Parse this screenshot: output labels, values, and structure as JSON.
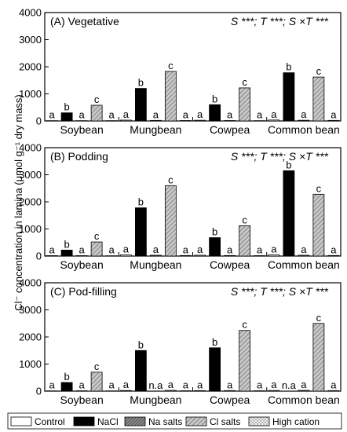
{
  "chart_data": {
    "type": "bar",
    "ylabel": "Cl⁻ concentration in lamina (μmol g⁻¹ dry mass)",
    "categories": [
      "Soybean",
      "Mungbean",
      "Cowpea",
      "Common bean"
    ],
    "legend": {
      "placement": "bottom",
      "entries": [
        "Control",
        "NaCl",
        "Na salts",
        "Cl salts",
        "High cation"
      ]
    },
    "series_styles": [
      {
        "fill": "#ffffff",
        "pattern": "none"
      },
      {
        "fill": "#000000",
        "pattern": "none"
      },
      {
        "fill": "#6e6e6e",
        "pattern": "hatch-dense"
      },
      {
        "fill": "#bdbdbd",
        "pattern": "hatch"
      },
      {
        "fill": "#ffffff",
        "pattern": "crosshatch"
      }
    ],
    "panels": [
      {
        "title": "(A) Vegetative",
        "stat": "S ***; T ***; S ×T ***",
        "ylim": [
          0,
          4000
        ],
        "yticks": [
          0,
          1000,
          2000,
          3000,
          4000
        ],
        "series": [
          {
            "name": "Control",
            "values": [
              10,
              30,
              25,
              35
            ],
            "labels": [
              "a",
              "a",
              "a",
              "a"
            ]
          },
          {
            "name": "NaCl",
            "values": [
              300,
              1200,
              600,
              1780
            ],
            "labels": [
              "b",
              "b",
              "b",
              "b"
            ]
          },
          {
            "name": "Na salts",
            "values": [
              10,
              20,
              15,
              25
            ],
            "labels": [
              "a",
              "a",
              "a",
              "a"
            ]
          },
          {
            "name": "Cl salts",
            "values": [
              580,
              1830,
              1220,
              1620
            ],
            "labels": [
              "c",
              "c",
              "c",
              "c"
            ]
          },
          {
            "name": "High cation",
            "values": [
              10,
              15,
              10,
              20
            ],
            "labels": [
              "a",
              "a",
              "a",
              "a"
            ]
          }
        ]
      },
      {
        "title": "(B) Podding",
        "stat": "S ***; T ***; S ×T ***",
        "ylim": [
          0,
          4000
        ],
        "yticks": [
          0,
          1000,
          2000,
          3000,
          4000
        ],
        "series": [
          {
            "name": "Control",
            "values": [
              15,
              40,
              30,
              45
            ],
            "labels": [
              "a",
              "a",
              "a",
              "a"
            ]
          },
          {
            "name": "NaCl",
            "values": [
              220,
              1780,
              680,
              3150
            ],
            "labels": [
              "b",
              "b",
              "b",
              "b"
            ]
          },
          {
            "name": "Na salts",
            "values": [
              15,
              30,
              20,
              30
            ],
            "labels": [
              "a",
              "a",
              "a",
              "a"
            ]
          },
          {
            "name": "Cl salts",
            "values": [
              520,
              2600,
              1120,
              2280
            ],
            "labels": [
              "c",
              "c",
              "c",
              "c"
            ]
          },
          {
            "name": "High cation",
            "values": [
              10,
              20,
              15,
              20
            ],
            "labels": [
              "a",
              "a",
              "a",
              "a"
            ]
          }
        ]
      },
      {
        "title": "(C) Pod-filling",
        "stat": "S ***; T ***; S ×T ***",
        "ylim": [
          0,
          4000
        ],
        "yticks": [
          0,
          1000,
          2000,
          3000,
          4000
        ],
        "series": [
          {
            "name": "Control",
            "values": [
              10,
              25,
              20,
              25
            ],
            "labels": [
              "a",
              "a",
              "a",
              "a"
            ]
          },
          {
            "name": "NaCl",
            "values": [
              320,
              1500,
              1600,
              0
            ],
            "labels": [
              "b",
              "b",
              "b",
              "n.a"
            ]
          },
          {
            "name": "Na salts",
            "values": [
              15,
              0,
              20,
              30
            ],
            "labels": [
              "a",
              "n.a",
              "a",
              "a"
            ]
          },
          {
            "name": "Cl salts",
            "values": [
              700,
              30,
              2240,
              2500
            ],
            "labels": [
              "c",
              "a",
              "c",
              "c"
            ]
          },
          {
            "name": "High cation",
            "values": [
              10,
              15,
              15,
              20
            ],
            "labels": [
              "a",
              "a",
              "a",
              "a"
            ]
          }
        ]
      }
    ]
  }
}
